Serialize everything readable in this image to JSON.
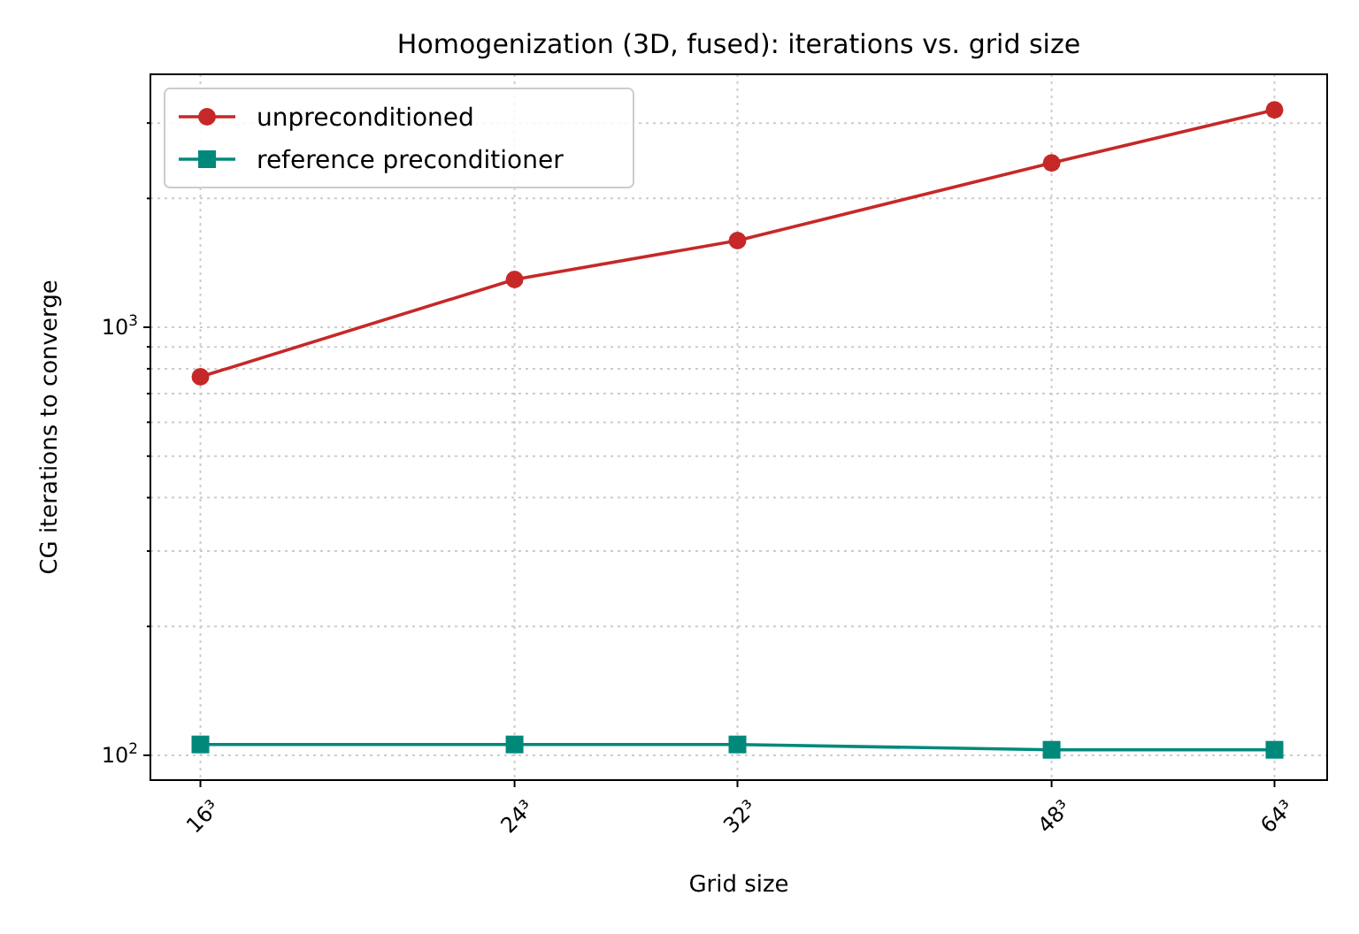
{
  "chart_data": {
    "type": "line",
    "title": "Homogenization (3D, fused): iterations vs. grid size",
    "xlabel": "Grid size",
    "ylabel": "CG iterations to converge",
    "x": [
      16,
      24,
      32,
      48,
      64
    ],
    "series": [
      {
        "name": "unpreconditioned",
        "color": "#c62828",
        "marker": "circle",
        "values": [
          766,
          1293,
          1594,
          2421,
          3221
        ]
      },
      {
        "name": "reference preconditioner",
        "color": "#00897b",
        "marker": "square",
        "values": [
          106,
          106,
          106,
          103,
          103
        ]
      }
    ],
    "log": "xy",
    "xlim": [
      15,
      68.5
    ],
    "ylim": [
      87.5,
      3900
    ],
    "xticks": [
      {
        "value": 16,
        "label": "16³"
      },
      {
        "value": 24,
        "label": "24³"
      },
      {
        "value": 32,
        "label": "32³"
      },
      {
        "value": 48,
        "label": "48³"
      },
      {
        "value": 64,
        "label": "64³"
      }
    ],
    "yticks": [
      {
        "value": 100,
        "label": "10$^{2}$"
      },
      {
        "value": 200,
        "label": null
      },
      {
        "value": 300,
        "label": null
      },
      {
        "value": 400,
        "label": null
      },
      {
        "value": 500,
        "label": null
      },
      {
        "value": 600,
        "label": null
      },
      {
        "value": 700,
        "label": null
      },
      {
        "value": 800,
        "label": null
      },
      {
        "value": 900,
        "label": null
      },
      {
        "value": 1000,
        "label": "10$^{3}$"
      },
      {
        "value": 2000,
        "label": null
      },
      {
        "value": 3000,
        "label": null
      }
    ],
    "grid": true,
    "legend": "top left",
    "line_style": "solid"
  }
}
